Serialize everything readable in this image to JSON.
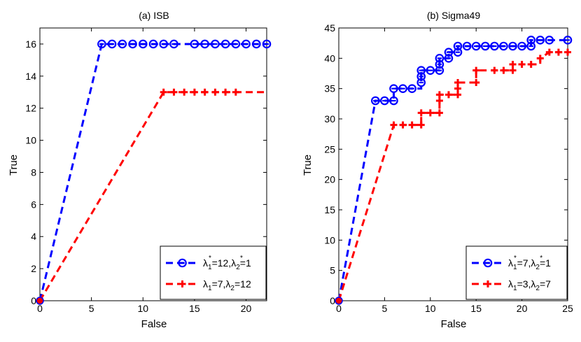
{
  "chart_data": [
    {
      "type": "line",
      "title": "(a) ISB",
      "xlabel": "False",
      "ylabel": "True",
      "xlim": [
        0,
        22
      ],
      "ylim": [
        0,
        17
      ],
      "xticks": [
        0,
        5,
        10,
        15,
        20
      ],
      "yticks": [
        0,
        2,
        4,
        6,
        8,
        10,
        12,
        14,
        16
      ],
      "legend_position": "bottom-right",
      "series": [
        {
          "name": "λ1*=12,λ2*=1",
          "legend": {
            "pre": "λ",
            "sub1": "1",
            "sup1": "*",
            "mid": "=12,λ",
            "sub2": "2",
            "sup2": "*",
            "post": "=1"
          },
          "color": "#0000ff",
          "marker": "circle",
          "x": [
            0,
            6,
            7,
            8,
            9,
            10,
            11,
            12,
            13,
            15,
            16,
            17,
            18,
            19,
            20,
            21,
            22
          ],
          "y": [
            0,
            16,
            16,
            16,
            16,
            16,
            16,
            16,
            16,
            16,
            16,
            16,
            16,
            16,
            16,
            16,
            16
          ],
          "marker_x": [
            6,
            7,
            8,
            9,
            10,
            11,
            12,
            13,
            15,
            16,
            17,
            18,
            19,
            20,
            21,
            22
          ]
        },
        {
          "name": "λ1=7,λ2=12",
          "legend": {
            "pre": "λ",
            "sub1": "1",
            "sup1": "",
            "mid": "=7,λ",
            "sub2": "2",
            "sup2": "",
            "post": "=12"
          },
          "color": "#ff0000",
          "marker": "plus",
          "x": [
            0,
            12,
            13,
            14,
            15,
            16,
            17,
            18,
            19,
            22
          ],
          "y": [
            0,
            13,
            13,
            13,
            13,
            13,
            13,
            13,
            13,
            13
          ],
          "marker_x": [
            12,
            13,
            14,
            15,
            16,
            17,
            18,
            19
          ]
        }
      ]
    },
    {
      "type": "line",
      "title": "(b) Sigma49",
      "xlabel": "False",
      "ylabel": "True",
      "xlim": [
        0,
        25
      ],
      "ylim": [
        0,
        45
      ],
      "xticks": [
        0,
        5,
        10,
        15,
        20,
        25
      ],
      "yticks": [
        0,
        5,
        10,
        15,
        20,
        25,
        30,
        35,
        40,
        45
      ],
      "legend_position": "bottom-right",
      "series": [
        {
          "name": "λ1*=7,λ2*=1",
          "legend": {
            "pre": "λ",
            "sub1": "1",
            "sup1": "*",
            "mid": "=7,λ",
            "sub2": "2",
            "sup2": "*",
            "post": "=1"
          },
          "color": "#0000ff",
          "marker": "circle",
          "x": [
            0,
            4,
            5,
            6,
            6,
            7,
            8,
            9,
            9,
            9,
            9,
            10,
            11,
            11,
            11,
            12,
            12,
            13,
            13,
            14,
            15,
            16,
            17,
            18,
            19,
            20,
            21,
            21,
            22,
            23,
            25
          ],
          "y": [
            0,
            33,
            33,
            33,
            35,
            35,
            35,
            35,
            36,
            37,
            38,
            38,
            38,
            39,
            40,
            40,
            41,
            41,
            42,
            42,
            42,
            42,
            42,
            42,
            42,
            42,
            42,
            43,
            43,
            43,
            43
          ],
          "marker_pts": [
            [
              4,
              33
            ],
            [
              5,
              33
            ],
            [
              6,
              33
            ],
            [
              6,
              35
            ],
            [
              7,
              35
            ],
            [
              8,
              35
            ],
            [
              9,
              36
            ],
            [
              9,
              37
            ],
            [
              9,
              38
            ],
            [
              10,
              38
            ],
            [
              11,
              38
            ],
            [
              11,
              39
            ],
            [
              11,
              40
            ],
            [
              12,
              40
            ],
            [
              12,
              41
            ],
            [
              13,
              41
            ],
            [
              13,
              42
            ],
            [
              14,
              42
            ],
            [
              15,
              42
            ],
            [
              16,
              42
            ],
            [
              17,
              42
            ],
            [
              18,
              42
            ],
            [
              19,
              42
            ],
            [
              20,
              42
            ],
            [
              21,
              42
            ],
            [
              21,
              43
            ],
            [
              22,
              43
            ],
            [
              23,
              43
            ],
            [
              25,
              43
            ]
          ]
        },
        {
          "name": "λ1=3,λ2=7",
          "legend": {
            "pre": "λ",
            "sub1": "1",
            "sup1": "",
            "mid": "=3,λ",
            "sub2": "2",
            "sup2": "",
            "post": "=7"
          },
          "color": "#ff0000",
          "marker": "plus",
          "x": [
            0,
            6,
            7,
            8,
            9,
            9,
            10,
            11,
            11,
            11,
            12,
            13,
            13,
            13,
            14,
            15,
            15,
            16,
            17,
            18,
            18,
            19,
            19,
            20,
            21,
            22,
            22,
            23,
            24,
            25
          ],
          "y": [
            0,
            29,
            29,
            29,
            29,
            31,
            31,
            31,
            33,
            34,
            34,
            34,
            35,
            36,
            36,
            36,
            38,
            38,
            38,
            38,
            38,
            38,
            39,
            39,
            39,
            39,
            40,
            41,
            41,
            41
          ],
          "marker_pts": [
            [
              6,
              29
            ],
            [
              7,
              29
            ],
            [
              8,
              29
            ],
            [
              9,
              29
            ],
            [
              9,
              31
            ],
            [
              10,
              31
            ],
            [
              11,
              31
            ],
            [
              11,
              33
            ],
            [
              11,
              34
            ],
            [
              12,
              34
            ],
            [
              13,
              34
            ],
            [
              13,
              35
            ],
            [
              13,
              36
            ],
            [
              15,
              36
            ],
            [
              15,
              38
            ],
            [
              17,
              38
            ],
            [
              18,
              38
            ],
            [
              19,
              38
            ],
            [
              19,
              39
            ],
            [
              20,
              39
            ],
            [
              21,
              39
            ],
            [
              22,
              40
            ],
            [
              23,
              41
            ],
            [
              24,
              41
            ],
            [
              25,
              41
            ]
          ]
        }
      ]
    }
  ]
}
